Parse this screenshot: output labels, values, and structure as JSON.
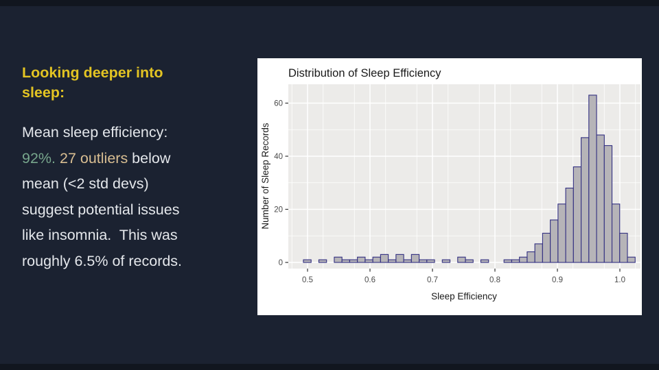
{
  "slide": {
    "colors": {
      "background": "#1B2231",
      "edge_strip": "#11161F",
      "heading": "#E3C423",
      "body": "#E4E7EB",
      "green": "#77A68C",
      "tan": "#D9BE92"
    },
    "heading_lines": [
      "Looking deeper into",
      "sleep:"
    ],
    "paragraph_lines": [
      [
        {
          "text": "Mean sleep efficiency:",
          "color": "body"
        }
      ],
      [
        {
          "text": "92%.",
          "color": "green"
        },
        {
          "text": " ",
          "color": "body"
        },
        {
          "text": "27 outliers",
          "color": "tan"
        },
        {
          "text": " below",
          "color": "body"
        }
      ],
      [
        {
          "text": "mean (<2 std devs)",
          "color": "body"
        }
      ],
      [
        {
          "text": "suggest potential issues",
          "color": "body"
        }
      ],
      [
        {
          "text": "like insomnia.  This was",
          "color": "body"
        }
      ],
      [
        {
          "text": "roughly 6.5% of records.",
          "color": "body"
        }
      ]
    ]
  },
  "chart_data": {
    "type": "bar",
    "title": "Distribution of Sleep Efficiency",
    "xlabel": "Sleep Efficiency",
    "ylabel": "Number of Sleep Records",
    "x_ticks": [
      0.5,
      0.6,
      0.7,
      0.8,
      0.9,
      1.0
    ],
    "y_ticks": [
      0,
      20,
      40,
      60
    ],
    "xlim": [
      0.469,
      1.034
    ],
    "ylim": [
      0,
      67
    ],
    "grid": true,
    "legend": "none",
    "bin_start": 0.4934,
    "bin_width": 0.01235,
    "counts": [
      1,
      0,
      1,
      0,
      2,
      1,
      1,
      2,
      1,
      2,
      3,
      1,
      3,
      1,
      3,
      1,
      1,
      0,
      1,
      0,
      2,
      1,
      0,
      1,
      0,
      0,
      1,
      1,
      2,
      4,
      7,
      11,
      16,
      22,
      28,
      36,
      47,
      63,
      48,
      44,
      22,
      11,
      2
    ],
    "colors": {
      "panel": "#ECEBE9",
      "grid_major": "#FFFFFF",
      "grid_minor": "#F8F7F6",
      "bar_fill": "#B6B4B8",
      "bar_stroke": "#312E80",
      "tick_text": "#4A4A4A",
      "axis_text": "#1A1A1A",
      "tick_mark": "#333333"
    }
  }
}
